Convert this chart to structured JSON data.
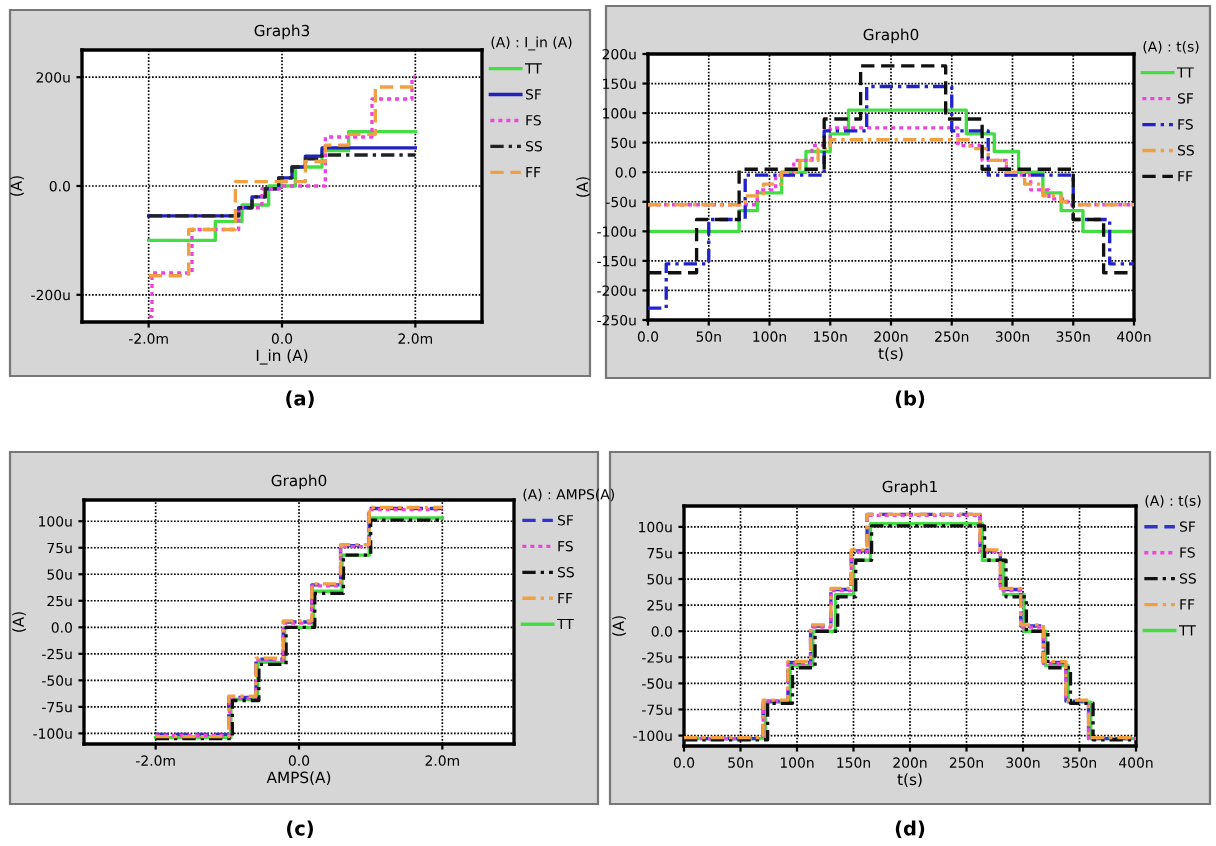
{
  "chart_data": [
    {
      "type": "step",
      "title": "Graph3",
      "legend_title": "(A) : I_in (A)",
      "xlabel": "I_in (A)",
      "ylabel": "(A)",
      "annotations": [
        "(a)"
      ],
      "xlim": [
        -3,
        3
      ],
      "xticks": [
        {
          "value": -2,
          "label": "-2.0m"
        },
        {
          "value": 0,
          "label": "0.0"
        },
        {
          "value": 2,
          "label": "2.0m"
        }
      ],
      "ylim": [
        -250,
        250
      ],
      "yticks": [
        {
          "value": -200,
          "label": "-200u"
        },
        {
          "value": 0,
          "label": "0.0"
        },
        {
          "value": 200,
          "label": "200u"
        }
      ],
      "grid": true,
      "legend": "right",
      "series": [
        {
          "name": "TT",
          "color": "#44dd44",
          "line_style": "solid",
          "x": [
            -2,
            -1,
            -0.6,
            -0.2,
            0.2,
            0.6,
            1.0,
            2.0
          ],
          "values": [
            -100,
            -65,
            -35,
            0,
            35,
            65,
            100,
            100
          ]
        },
        {
          "name": "SF",
          "color": "#2222bb",
          "line_style": "solid",
          "x": [
            -2,
            -0.65,
            -0.45,
            -0.25,
            -0.05,
            0.15,
            0.35,
            0.6,
            2.0
          ],
          "values": [
            -55,
            -40,
            -20,
            -5,
            15,
            35,
            55,
            70,
            70
          ]
        },
        {
          "name": "FS",
          "color": "#ee44dd",
          "line_style": "dotted",
          "x": [
            -2,
            -1.95,
            -1.35,
            -0.65,
            -0.3,
            0,
            0.65,
            1.35,
            1.95,
            2.0
          ],
          "values": [
            -240,
            -160,
            -80,
            -40,
            -5,
            0,
            90,
            160,
            200,
            200
          ]
        },
        {
          "name": "SS",
          "color": "#222222",
          "line_style": "dashdot",
          "x": [
            -2,
            -0.65,
            -0.45,
            -0.25,
            -0.05,
            0.15,
            0.35,
            0.6,
            2.0
          ],
          "values": [
            -55,
            -40,
            -20,
            -5,
            15,
            35,
            50,
            57,
            57
          ]
        },
        {
          "name": "FF",
          "color": "#f0a040",
          "line_style": "dashed",
          "x": [
            -2,
            -1.4,
            -0.7,
            0.35,
            0.65,
            1.0,
            1.4,
            2.0
          ],
          "values": [
            -165,
            -80,
            8,
            45,
            75,
            95,
            182,
            182
          ]
        }
      ]
    },
    {
      "type": "step",
      "title": "Graph0",
      "legend_title": "(A) : t(s)",
      "xlabel": "t(s)",
      "ylabel": "(A)",
      "annotations": [
        "(b)"
      ],
      "xlim": [
        0,
        400
      ],
      "xticks": [
        {
          "value": 0,
          "label": "0.0"
        },
        {
          "value": 50,
          "label": "50n"
        },
        {
          "value": 100,
          "label": "100n"
        },
        {
          "value": 150,
          "label": "150n"
        },
        {
          "value": 200,
          "label": "200n"
        },
        {
          "value": 250,
          "label": "250n"
        },
        {
          "value": 300,
          "label": "300n"
        },
        {
          "value": 350,
          "label": "350n"
        },
        {
          "value": 400,
          "label": "400n"
        }
      ],
      "ylim": [
        -250,
        200
      ],
      "yticks": [
        {
          "value": -250,
          "label": "-250u"
        },
        {
          "value": -200,
          "label": "-200u"
        },
        {
          "value": -150,
          "label": "-150u"
        },
        {
          "value": -100,
          "label": "-100u"
        },
        {
          "value": -50,
          "label": "-50u"
        },
        {
          "value": 0,
          "label": "0.0"
        },
        {
          "value": 50,
          "label": "50u"
        },
        {
          "value": 100,
          "label": "100u"
        },
        {
          "value": 150,
          "label": "150u"
        },
        {
          "value": 200,
          "label": "200u"
        }
      ],
      "grid": true,
      "legend": "right",
      "series": [
        {
          "name": "TT",
          "color": "#44dd44",
          "line_style": "solid",
          "x": [
            0,
            75,
            90,
            110,
            130,
            150,
            165,
            262,
            285,
            305,
            325,
            340,
            358,
            400
          ],
          "values": [
            -100,
            -65,
            -35,
            0,
            35,
            65,
            105,
            65,
            35,
            0,
            -35,
            -65,
            -100,
            -100
          ]
        },
        {
          "name": "SF",
          "color": "#ee44dd",
          "line_style": "dotted",
          "x": [
            0,
            90,
            105,
            120,
            135,
            150,
            255,
            275,
            295,
            315,
            330,
            345,
            400
          ],
          "values": [
            -55,
            -30,
            -5,
            20,
            45,
            75,
            45,
            20,
            -5,
            -30,
            -45,
            -55,
            -55
          ]
        },
        {
          "name": "FS",
          "color": "#2222cc",
          "line_style": "dashdot",
          "x": [
            0,
            15,
            50,
            80,
            145,
            180,
            250,
            280,
            350,
            380,
            400
          ],
          "values": [
            -230,
            -155,
            -80,
            -5,
            70,
            145,
            70,
            -5,
            -80,
            -155,
            -155
          ]
        },
        {
          "name": "SS",
          "color": "#f0a040",
          "line_style": "dashdot",
          "x": [
            0,
            80,
            95,
            110,
            125,
            140,
            150,
            265,
            280,
            295,
            310,
            325,
            340,
            350,
            400
          ],
          "values": [
            -55,
            -40,
            -20,
            0,
            20,
            40,
            55,
            40,
            20,
            0,
            -20,
            -40,
            -50,
            -55,
            -55
          ]
        },
        {
          "name": "FF",
          "color": "#111111",
          "line_style": "dashed",
          "x": [
            0,
            40,
            75,
            145,
            175,
            245,
            275,
            350,
            375,
            400
          ],
          "values": [
            -170,
            -80,
            5,
            90,
            180,
            90,
            5,
            -80,
            -170,
            -170
          ]
        }
      ]
    },
    {
      "type": "step",
      "title": "Graph0",
      "legend_title": "(A) : AMPS(A)",
      "xlabel": "AMPS(A)",
      "ylabel": "(A)",
      "annotations": [
        "(c)"
      ],
      "xlim": [
        -3,
        3
      ],
      "xticks": [
        {
          "value": -2,
          "label": "-2.0m"
        },
        {
          "value": 0,
          "label": "0.0"
        },
        {
          "value": 2,
          "label": "2.0m"
        }
      ],
      "ylim": [
        -110,
        120
      ],
      "yticks": [
        {
          "value": -100,
          "label": "-100u"
        },
        {
          "value": -75,
          "label": "-75u"
        },
        {
          "value": -50,
          "label": "-50u"
        },
        {
          "value": -25,
          "label": "-25u"
        },
        {
          "value": 0,
          "label": "0.0"
        },
        {
          "value": 25,
          "label": "25u"
        },
        {
          "value": 50,
          "label": "50u"
        },
        {
          "value": 75,
          "label": "75u"
        },
        {
          "value": 100,
          "label": "100u"
        }
      ],
      "grid": true,
      "legend": "right",
      "series": [
        {
          "name": "SF",
          "color": "#3333cc",
          "line_style": "dashed",
          "x": [
            -2,
            -0.98,
            -0.6,
            -0.22,
            0.18,
            0.58,
            0.98,
            2.0
          ],
          "values": [
            -101,
            -66,
            -30,
            5,
            40,
            77,
            112,
            112
          ]
        },
        {
          "name": "FS",
          "color": "#ee44dd",
          "line_style": "dotted",
          "x": [
            -2,
            -0.97,
            -0.6,
            -0.22,
            0.18,
            0.58,
            0.97,
            2.0
          ],
          "values": [
            -102,
            -67,
            -31,
            4,
            39,
            76,
            111,
            111
          ]
        },
        {
          "name": "SS",
          "color": "#111111",
          "line_style": "dashdot",
          "x": [
            -2,
            -0.93,
            -0.56,
            -0.18,
            0.22,
            0.62,
            1.0,
            2.0
          ],
          "values": [
            -105,
            -69,
            -35,
            0,
            32,
            68,
            101,
            101
          ]
        },
        {
          "name": "FF",
          "color": "#f0a040",
          "line_style": "dashdot",
          "x": [
            -2,
            -0.98,
            -0.6,
            -0.22,
            0.18,
            0.58,
            0.98,
            2.0
          ],
          "values": [
            -103,
            -65,
            -29,
            6,
            41,
            78,
            113,
            113
          ]
        },
        {
          "name": "TT",
          "color": "#44dd44",
          "line_style": "solid",
          "x": [
            -2,
            -0.95,
            -0.58,
            -0.2,
            0.2,
            0.6,
            0.98,
            2.0
          ],
          "values": [
            -104,
            -68,
            -33,
            0,
            34,
            68,
            103,
            103
          ]
        }
      ]
    },
    {
      "type": "step",
      "title": "Graph1",
      "legend_title": "(A) : t(s)",
      "xlabel": "t(s)",
      "ylabel": "(A)",
      "annotations": [
        "(d)"
      ],
      "xlim": [
        0,
        400
      ],
      "xticks": [
        {
          "value": 0,
          "label": "0.0"
        },
        {
          "value": 50,
          "label": "50n"
        },
        {
          "value": 100,
          "label": "100n"
        },
        {
          "value": 150,
          "label": "150n"
        },
        {
          "value": 200,
          "label": "200n"
        },
        {
          "value": 250,
          "label": "250n"
        },
        {
          "value": 300,
          "label": "300n"
        },
        {
          "value": 350,
          "label": "350n"
        },
        {
          "value": 400,
          "label": "400n"
        }
      ],
      "ylim": [
        -110,
        120
      ],
      "yticks": [
        {
          "value": -100,
          "label": "-100u"
        },
        {
          "value": -75,
          "label": "-75u"
        },
        {
          "value": -50,
          "label": "-50u"
        },
        {
          "value": -25,
          "label": "-25u"
        },
        {
          "value": 0,
          "label": "0.0"
        },
        {
          "value": 25,
          "label": "25u"
        },
        {
          "value": 50,
          "label": "50u"
        },
        {
          "value": 75,
          "label": "75u"
        },
        {
          "value": 100,
          "label": "100u"
        }
      ],
      "grid": true,
      "legend": "right",
      "series": [
        {
          "name": "SF",
          "color": "#3333cc",
          "line_style": "dashed",
          "x": [
            0,
            70,
            92,
            112,
            130,
            148,
            162,
            262,
            280,
            298,
            318,
            338,
            358,
            400
          ],
          "values": [
            -103,
            -67,
            -30,
            5,
            40,
            77,
            112,
            77,
            40,
            5,
            -30,
            -67,
            -103,
            -103
          ]
        },
        {
          "name": "FS",
          "color": "#ee44dd",
          "line_style": "dotted",
          "x": [
            0,
            70,
            92,
            112,
            130,
            148,
            162,
            262,
            280,
            298,
            318,
            338,
            358,
            400
          ],
          "values": [
            -103,
            -67,
            -31,
            4,
            39,
            76,
            111,
            76,
            39,
            4,
            -31,
            -67,
            -103,
            -103
          ]
        },
        {
          "name": "SS",
          "color": "#111111",
          "line_style": "dashdot",
          "x": [
            0,
            74,
            96,
            116,
            136,
            152,
            166,
            266,
            285,
            303,
            322,
            342,
            362,
            400
          ],
          "values": [
            -104,
            -69,
            -35,
            0,
            33,
            68,
            101,
            68,
            33,
            0,
            -35,
            -69,
            -104,
            -104
          ]
        },
        {
          "name": "FF",
          "color": "#f0a040",
          "line_style": "dashdot",
          "x": [
            0,
            70,
            92,
            112,
            130,
            148,
            162,
            262,
            280,
            298,
            318,
            338,
            358,
            400
          ],
          "values": [
            -102,
            -66,
            -29,
            6,
            41,
            78,
            112,
            78,
            41,
            6,
            -29,
            -66,
            -102,
            -102
          ]
        },
        {
          "name": "TT",
          "color": "#44dd44",
          "line_style": "solid",
          "x": [
            0,
            72,
            94,
            114,
            134,
            150,
            165,
            264,
            283,
            301,
            320,
            340,
            360,
            400
          ],
          "values": [
            -103,
            -68,
            -33,
            0,
            35,
            68,
            103,
            68,
            35,
            0,
            -33,
            -68,
            -103,
            -103
          ]
        }
      ]
    }
  ]
}
